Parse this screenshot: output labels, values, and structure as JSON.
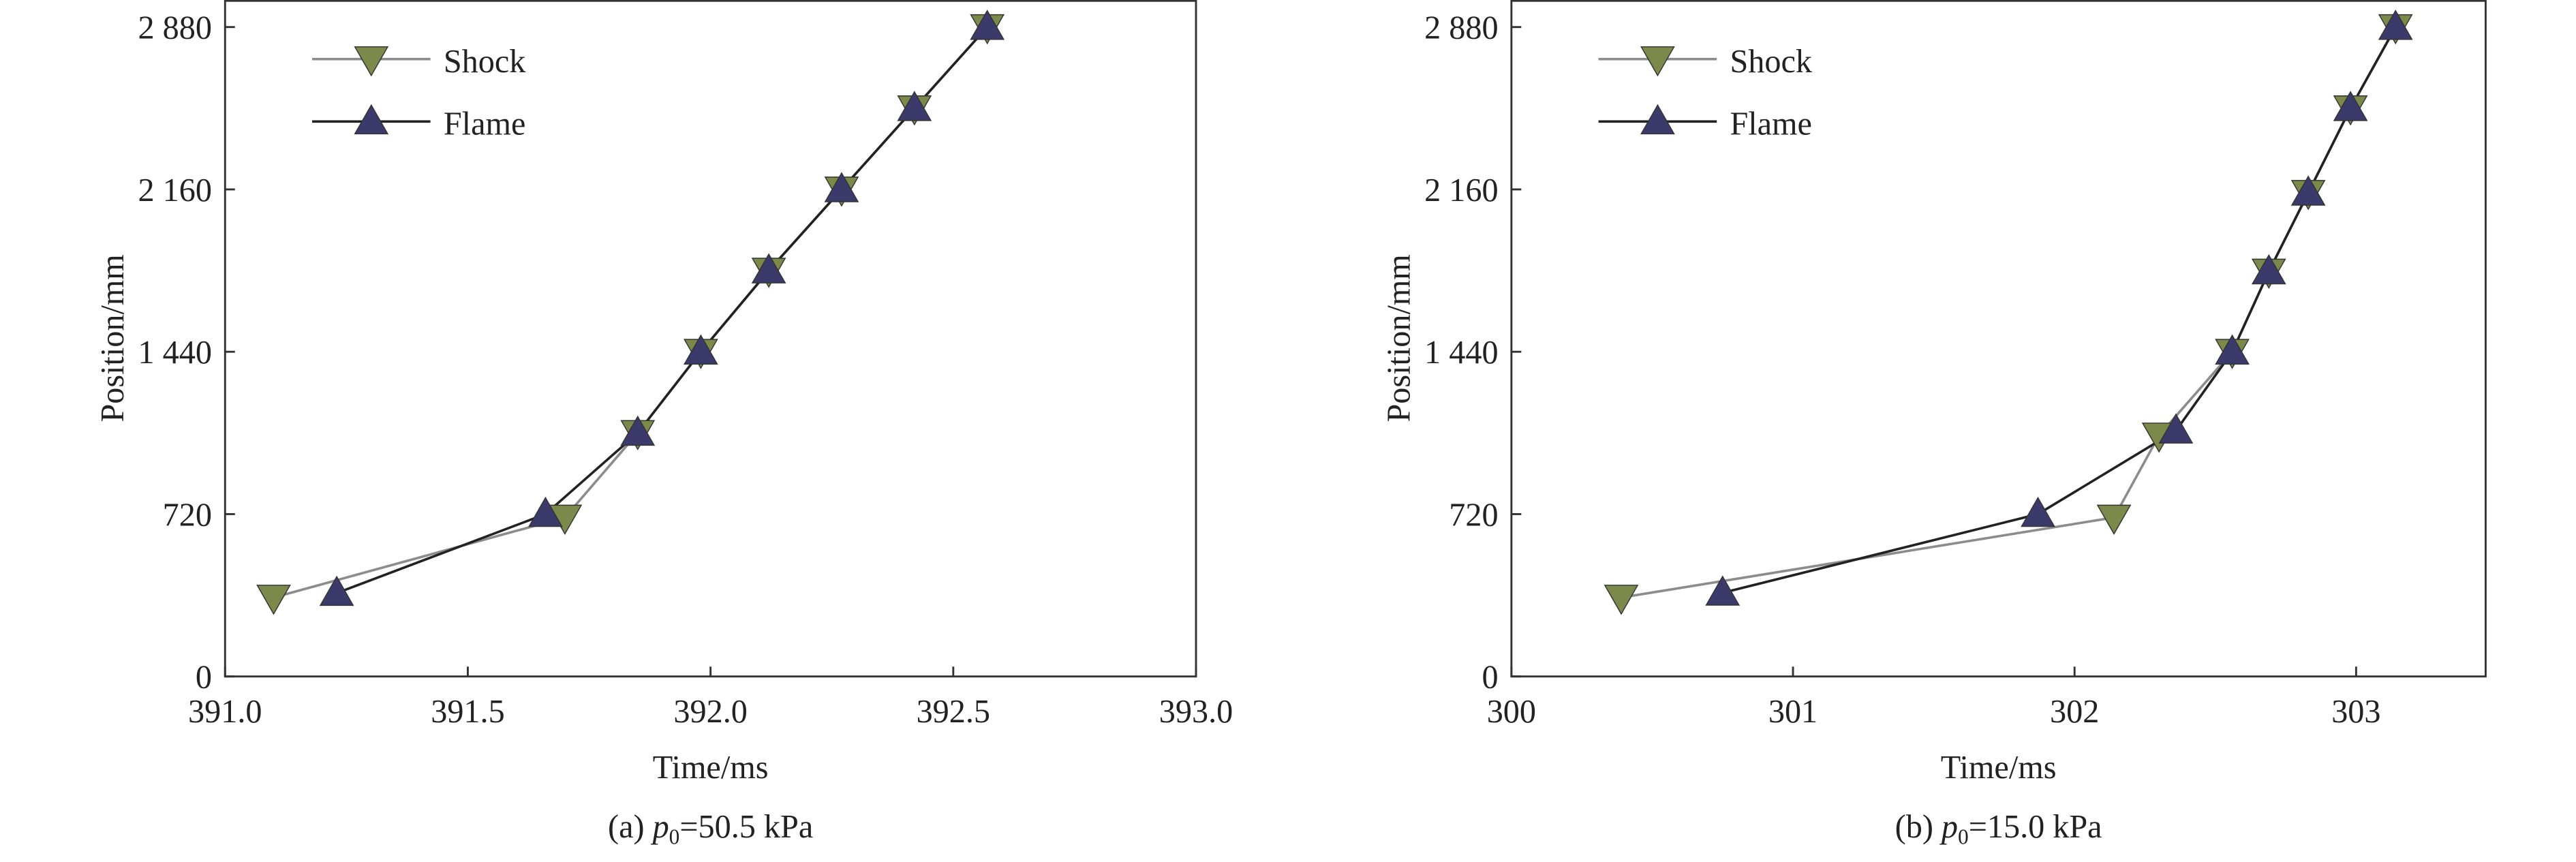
{
  "chart_data": [
    {
      "type": "line",
      "xlabel": "Time/ms",
      "ylabel": "Position/mm",
      "caption": {
        "prefix": "(a) ",
        "variable": "p",
        "subscript": "0",
        "suffix": "=50.5 kPa"
      },
      "xlim": [
        391,
        393
      ],
      "xticks": [
        {
          "value": 391,
          "label": "391.0"
        },
        391.5,
        {
          "value": 392,
          "label": "392.0"
        },
        392.5,
        {
          "value": 393,
          "label": "393.0"
        }
      ],
      "ylim": [
        0,
        3000
      ],
      "yticks": [
        0,
        720,
        {
          "value": 1440,
          "label": "1 440"
        },
        {
          "value": 2160,
          "label": "2 160"
        },
        {
          "value": 2880,
          "label": "2 880"
        }
      ],
      "legend": "upper left",
      "series": [
        {
          "name": "Shock",
          "color": "#7b8a4b",
          "line_color": "#8c8c8c",
          "marker": "triangle-down",
          "x": [
            391.1,
            391.7,
            391.85,
            391.98,
            392.12,
            392.27,
            392.42,
            392.57
          ],
          "values": [
            350,
            705,
            1080,
            1440,
            1800,
            2160,
            2520,
            2880
          ]
        },
        {
          "name": "Flame",
          "color": "#3b3a6b",
          "line_color": "#222222",
          "marker": "triangle-up",
          "x": [
            391.23,
            391.66,
            391.85,
            391.98,
            392.12,
            392.27,
            392.42,
            392.57
          ],
          "values": [
            370,
            720,
            1080,
            1440,
            1800,
            2160,
            2520,
            2880
          ]
        }
      ]
    },
    {
      "type": "line",
      "xlabel": "Time/ms",
      "ylabel": "Position/mm",
      "caption": {
        "prefix": "(b) ",
        "variable": "p",
        "subscript": "0",
        "suffix": "=15.0 kPa"
      },
      "xlim": [
        300,
        303.46
      ],
      "xticks": [
        300,
        301,
        302,
        303
      ],
      "ylim": [
        0,
        3000
      ],
      "yticks": [
        0,
        720,
        {
          "value": 1440,
          "label": "1 440"
        },
        {
          "value": 2160,
          "label": "2 160"
        },
        {
          "value": 2880,
          "label": "2 880"
        }
      ],
      "legend": "upper left",
      "series": [
        {
          "name": "Shock",
          "color": "#7b8a4b",
          "line_color": "#8c8c8c",
          "marker": "triangle-down",
          "x": [
            300.39,
            302.14,
            302.3,
            302.56,
            302.69,
            302.83,
            302.98,
            303.14
          ],
          "values": [
            350,
            705,
            1069,
            1440,
            1796,
            2145,
            2520,
            2880
          ]
        },
        {
          "name": "Flame",
          "color": "#3b3a6b",
          "line_color": "#222222",
          "marker": "triangle-up",
          "x": [
            300.75,
            301.87,
            302.36,
            302.56,
            302.69,
            302.83,
            302.98,
            303.14
          ],
          "values": [
            371,
            720,
            1090,
            1440,
            1796,
            2145,
            2520,
            2880
          ]
        }
      ]
    }
  ]
}
